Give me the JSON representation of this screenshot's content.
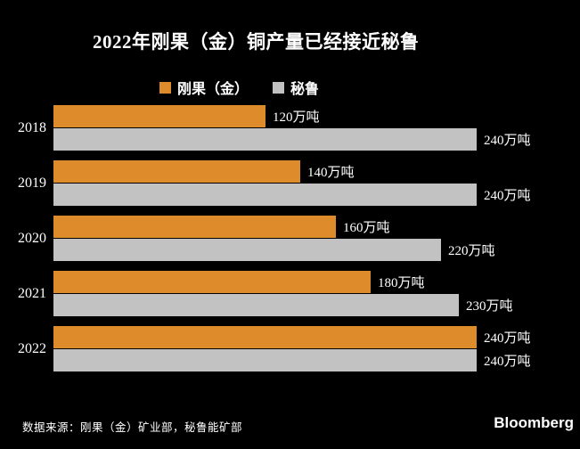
{
  "title": "2022年刚果（金）铜产量已经接近秘鲁",
  "colors": {
    "congo_orange": "#DE8C2B",
    "peru_gray": "#C2C2C2",
    "background": "#000000",
    "text": "#FFFFFF"
  },
  "legend": {
    "items": [
      {
        "label": "刚果（金）",
        "color": "#DE8C2B"
      },
      {
        "label": "秘鲁",
        "color": "#C2C2C2"
      }
    ]
  },
  "chart_data": {
    "type": "bar",
    "orientation": "horizontal",
    "title": "2022年刚果（金）铜产量已经接近秘鲁",
    "categories": [
      "2018",
      "2019",
      "2020",
      "2021",
      "2022"
    ],
    "series": [
      {
        "name": "刚果（金）",
        "color": "#DE8C2B",
        "values": [
          120,
          140,
          160,
          180,
          240
        ],
        "labels": [
          "120万吨",
          "140万吨",
          "160万吨",
          "180万吨",
          "240万吨"
        ]
      },
      {
        "name": "秘鲁",
        "color": "#C2C2C2",
        "values": [
          240,
          240,
          220,
          230,
          240
        ],
        "labels": [
          "240万吨",
          "240万吨",
          "220万吨",
          "230万吨",
          "240万吨"
        ]
      }
    ],
    "unit": "万吨",
    "xlim": [
      0,
      240
    ],
    "grid": false,
    "legend_position": "top",
    "value_labels": "outside-end"
  },
  "footer": {
    "source": "数据来源：刚果（金）矿业部，秘鲁能矿部",
    "brand": "Bloomberg"
  }
}
